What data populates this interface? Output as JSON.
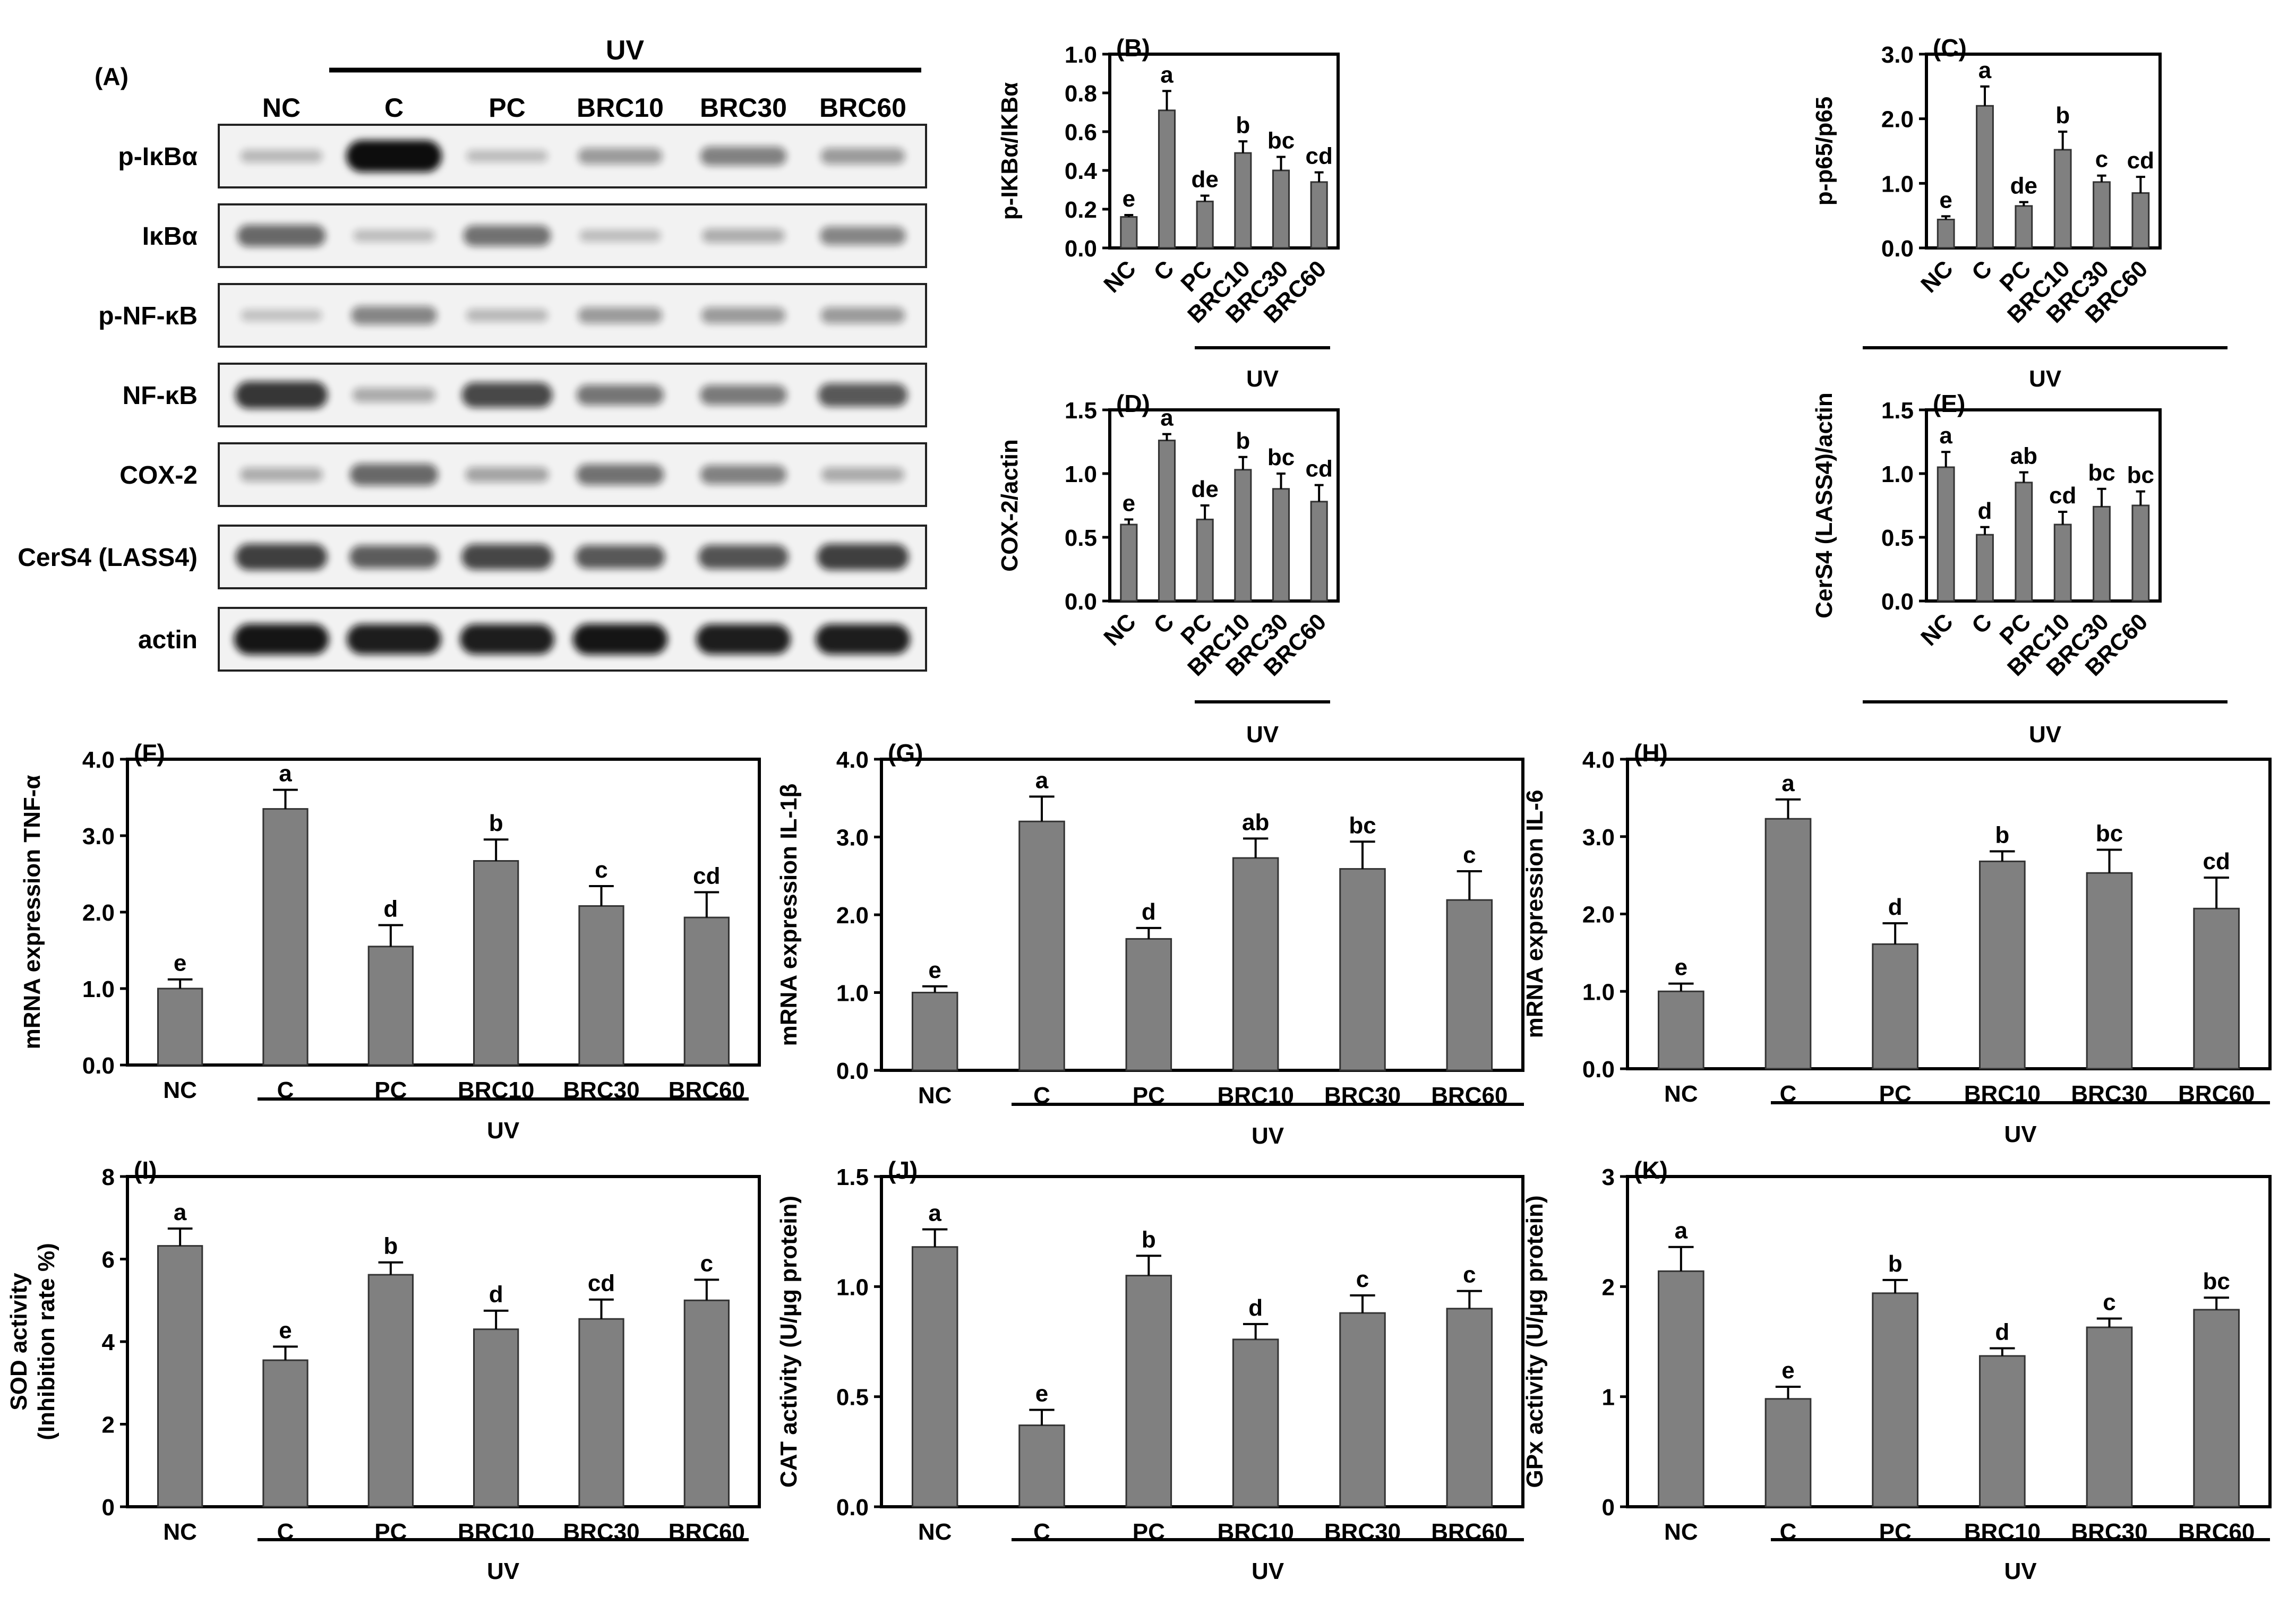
{
  "blot": {
    "panel_label": "(A)",
    "uv_label": "UV",
    "lanes": [
      "NC",
      "C",
      "PC",
      "BRC10",
      "BRC30",
      "BRC60"
    ],
    "rows": [
      {
        "label": "p-IκBα",
        "intensity": [
          0.15,
          1.0,
          0.12,
          0.3,
          0.42,
          0.3
        ]
      },
      {
        "label": "IκBα",
        "intensity": [
          0.55,
          0.12,
          0.5,
          0.12,
          0.2,
          0.4
        ]
      },
      {
        "label": "p-NF-κB",
        "intensity": [
          0.1,
          0.4,
          0.15,
          0.3,
          0.3,
          0.3
        ]
      },
      {
        "label": "NF-κB",
        "intensity": [
          0.8,
          0.22,
          0.7,
          0.48,
          0.46,
          0.62
        ]
      },
      {
        "label": "COX-2",
        "intensity": [
          0.2,
          0.55,
          0.25,
          0.5,
          0.42,
          0.22
        ]
      },
      {
        "label": "CerS4 (LASS4)",
        "intensity": [
          0.75,
          0.6,
          0.72,
          0.62,
          0.65,
          0.75
        ]
      },
      {
        "label": "actin",
        "intensity": [
          0.95,
          0.92,
          0.92,
          0.95,
          0.92,
          0.92
        ]
      }
    ]
  },
  "colors": {
    "bar": "#808080",
    "axis": "#000000",
    "band": "#0a0a0a",
    "membrane": "#f2f2f2"
  },
  "chart_data": [
    {
      "panel": "(B)",
      "type": "bar",
      "ylabel": "p-IKBα/IKBα",
      "categories": [
        "NC",
        "C",
        "PC",
        "BRC10",
        "BRC30",
        "BRC60"
      ],
      "tick_rotation": -45,
      "values": [
        0.16,
        0.71,
        0.24,
        0.49,
        0.4,
        0.34
      ],
      "errors": [
        0.01,
        0.1,
        0.03,
        0.06,
        0.07,
        0.05
      ],
      "letters": [
        "e",
        "a",
        "de",
        "b",
        "bc",
        "cd"
      ],
      "ylim": [
        0,
        1.0
      ],
      "yticks": [
        "0.0",
        "0.2",
        "0.4",
        "0.6",
        "0.8",
        "1.0"
      ],
      "group_label": "UV"
    },
    {
      "panel": "(C)",
      "type": "bar",
      "ylabel": "p-p65/p65",
      "categories": [
        "NC",
        "C",
        "PC",
        "BRC10",
        "BRC30",
        "BRC60"
      ],
      "tick_rotation": -45,
      "values": [
        0.44,
        2.2,
        0.65,
        1.52,
        1.02,
        0.85
      ],
      "errors": [
        0.05,
        0.3,
        0.06,
        0.28,
        0.1,
        0.25
      ],
      "letters": [
        "e",
        "a",
        "de",
        "b",
        "c",
        "cd"
      ],
      "ylim": [
        0,
        3.0
      ],
      "yticks": [
        "0.0",
        "1.0",
        "2.0",
        "3.0"
      ],
      "group_label": "UV"
    },
    {
      "panel": "(D)",
      "type": "bar",
      "ylabel": "COX-2/actin",
      "categories": [
        "NC",
        "C",
        "PC",
        "BRC10",
        "BRC30",
        "BRC60"
      ],
      "tick_rotation": -45,
      "values": [
        0.6,
        1.26,
        0.64,
        1.03,
        0.88,
        0.78
      ],
      "errors": [
        0.04,
        0.05,
        0.11,
        0.1,
        0.12,
        0.13
      ],
      "letters": [
        "e",
        "a",
        "de",
        "b",
        "bc",
        "cd"
      ],
      "ylim": [
        0,
        1.5
      ],
      "yticks": [
        "0.0",
        "0.5",
        "1.0",
        "1.5"
      ],
      "group_label": "UV"
    },
    {
      "panel": "(E)",
      "type": "bar",
      "ylabel": "CerS4 (LASS4)/actin",
      "categories": [
        "NC",
        "C",
        "PC",
        "BRC10",
        "BRC30",
        "BRC60"
      ],
      "tick_rotation": -45,
      "values": [
        1.05,
        0.52,
        0.93,
        0.6,
        0.74,
        0.75
      ],
      "errors": [
        0.12,
        0.06,
        0.08,
        0.1,
        0.14,
        0.11
      ],
      "letters": [
        "a",
        "d",
        "ab",
        "cd",
        "bc",
        "bc"
      ],
      "ylim": [
        0,
        1.5
      ],
      "yticks": [
        "0.0",
        "0.5",
        "1.0",
        "1.5"
      ],
      "group_label": "UV"
    },
    {
      "panel": "(F)",
      "type": "bar",
      "ylabel": "mRNA expression TNF-α",
      "categories": [
        "NC",
        "C",
        "PC",
        "BRC10",
        "BRC30",
        "BRC60"
      ],
      "tick_rotation": 0,
      "values": [
        1.0,
        3.35,
        1.55,
        2.67,
        2.08,
        1.93
      ],
      "errors": [
        0.12,
        0.25,
        0.28,
        0.28,
        0.26,
        0.33
      ],
      "letters": [
        "e",
        "a",
        "d",
        "b",
        "c",
        "cd"
      ],
      "ylim": [
        0,
        4.0
      ],
      "yticks": [
        "0.0",
        "1.0",
        "2.0",
        "3.0",
        "4.0"
      ],
      "group_label": "UV"
    },
    {
      "panel": "(G)",
      "type": "bar",
      "ylabel": "mRNA expression IL-1β",
      "categories": [
        "NC",
        "C",
        "PC",
        "BRC10",
        "BRC30",
        "BRC60"
      ],
      "tick_rotation": 0,
      "values": [
        1.0,
        3.2,
        1.69,
        2.73,
        2.59,
        2.19
      ],
      "errors": [
        0.08,
        0.32,
        0.14,
        0.25,
        0.35,
        0.37
      ],
      "letters": [
        "e",
        "a",
        "d",
        "ab",
        "bc",
        "c"
      ],
      "ylim": [
        0,
        4.0
      ],
      "yticks": [
        "0.0",
        "1.0",
        "2.0",
        "3.0",
        "4.0"
      ],
      "group_label": "UV"
    },
    {
      "panel": "(H)",
      "type": "bar",
      "ylabel": "mRNA expression IL-6",
      "categories": [
        "NC",
        "C",
        "PC",
        "BRC10",
        "BRC30",
        "BRC60"
      ],
      "tick_rotation": 0,
      "values": [
        1.0,
        3.23,
        1.61,
        2.68,
        2.53,
        2.07
      ],
      "errors": [
        0.1,
        0.25,
        0.27,
        0.13,
        0.3,
        0.4
      ],
      "letters": [
        "e",
        "a",
        "d",
        "b",
        "bc",
        "cd"
      ],
      "ylim": [
        0,
        4.0
      ],
      "yticks": [
        "0.0",
        "1.0",
        "2.0",
        "3.0",
        "4.0"
      ],
      "group_label": "UV"
    },
    {
      "panel": "(I)",
      "type": "bar",
      "ylabel": "SOD activity\n(Inhibition rate %)",
      "categories": [
        "NC",
        "C",
        "PC",
        "BRC10",
        "BRC30",
        "BRC60"
      ],
      "tick_rotation": 0,
      "values": [
        6.32,
        3.55,
        5.62,
        4.3,
        4.55,
        5.0
      ],
      "errors": [
        0.42,
        0.33,
        0.3,
        0.45,
        0.47,
        0.5
      ],
      "letters": [
        "a",
        "e",
        "b",
        "d",
        "cd",
        "c"
      ],
      "ylim": [
        0,
        8
      ],
      "yticks": [
        "0",
        "2",
        "4",
        "6",
        "8"
      ],
      "group_label": "UV"
    },
    {
      "panel": "(J)",
      "type": "bar",
      "ylabel": "CAT activity (U/µg protein)",
      "categories": [
        "NC",
        "C",
        "PC",
        "BRC10",
        "BRC30",
        "BRC60"
      ],
      "tick_rotation": 0,
      "values": [
        1.18,
        0.37,
        1.05,
        0.76,
        0.88,
        0.9
      ],
      "errors": [
        0.08,
        0.07,
        0.09,
        0.07,
        0.08,
        0.08
      ],
      "letters": [
        "a",
        "e",
        "b",
        "d",
        "c",
        "c"
      ],
      "ylim": [
        0,
        1.5
      ],
      "yticks": [
        "0.0",
        "0.5",
        "1.0",
        "1.5"
      ],
      "group_label": "UV"
    },
    {
      "panel": "(K)",
      "type": "bar",
      "ylabel": "GPx activity (U/µg protein)",
      "categories": [
        "NC",
        "C",
        "PC",
        "BRC10",
        "BRC30",
        "BRC60"
      ],
      "tick_rotation": 0,
      "values": [
        2.14,
        0.98,
        1.94,
        1.37,
        1.63,
        1.79
      ],
      "errors": [
        0.22,
        0.11,
        0.12,
        0.07,
        0.08,
        0.11
      ],
      "letters": [
        "a",
        "e",
        "b",
        "d",
        "c",
        "bc"
      ],
      "ylim": [
        0,
        3
      ],
      "yticks": [
        "0",
        "1",
        "2",
        "3"
      ],
      "group_label": "UV"
    }
  ]
}
